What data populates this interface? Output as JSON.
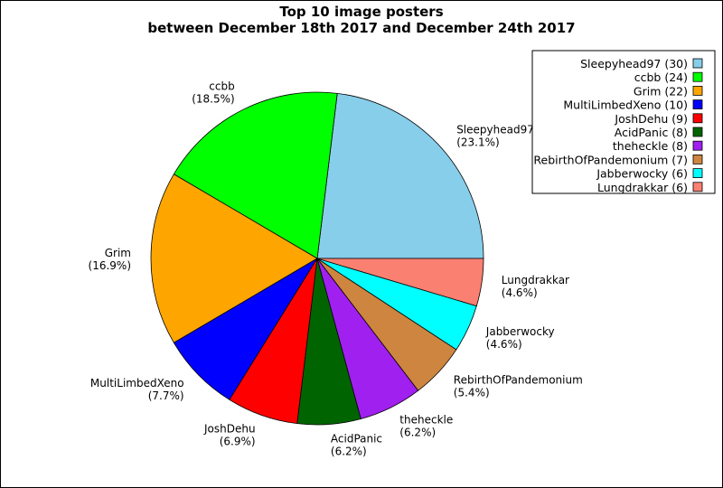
{
  "chart_data": {
    "type": "pie",
    "title": [
      "Top 10 image posters",
      "between December 18th 2017 and December 24th 2017"
    ],
    "slices": [
      {
        "name": "Sleepyhead97",
        "value": 30,
        "pct": "(23.1%)",
        "legend": "Sleepyhead97 (30)",
        "color": "#87ceeb"
      },
      {
        "name": "ccbb",
        "value": 24,
        "pct": "(18.5%)",
        "legend": "ccbb (24)",
        "color": "#00ff00"
      },
      {
        "name": "Grim",
        "value": 22,
        "pct": "(16.9%)",
        "legend": "Grim (22)",
        "color": "#ffa500"
      },
      {
        "name": "MultiLimbedXeno",
        "value": 10,
        "pct": "(7.7%)",
        "legend": "MultiLimbedXeno (10)",
        "color": "#0000ff"
      },
      {
        "name": "JoshDehu",
        "value": 9,
        "pct": "(6.9%)",
        "legend": "JoshDehu (9)",
        "color": "#ff0000"
      },
      {
        "name": "AcidPanic",
        "value": 8,
        "pct": "(6.2%)",
        "legend": "AcidPanic (8)",
        "color": "#006400"
      },
      {
        "name": "theheckle",
        "value": 8,
        "pct": "(6.2%)",
        "legend": "theheckle (8)",
        "color": "#a020f0"
      },
      {
        "name": "RebirthOfPandemonium",
        "value": 7,
        "pct": "(5.4%)",
        "legend": "RebirthOfPandemonium (7)",
        "color": "#cd853f"
      },
      {
        "name": "Jabberwocky",
        "value": 6,
        "pct": "(4.6%)",
        "legend": "Jabberwocky (6)",
        "color": "#00ffff"
      },
      {
        "name": "Lungdrakkar",
        "value": 6,
        "pct": "(4.6%)",
        "legend": "Lungdrakkar (6)",
        "color": "#fa8072"
      }
    ],
    "start_angle_deg": 0,
    "direction": "clockwise",
    "legend_position": "top-right"
  }
}
